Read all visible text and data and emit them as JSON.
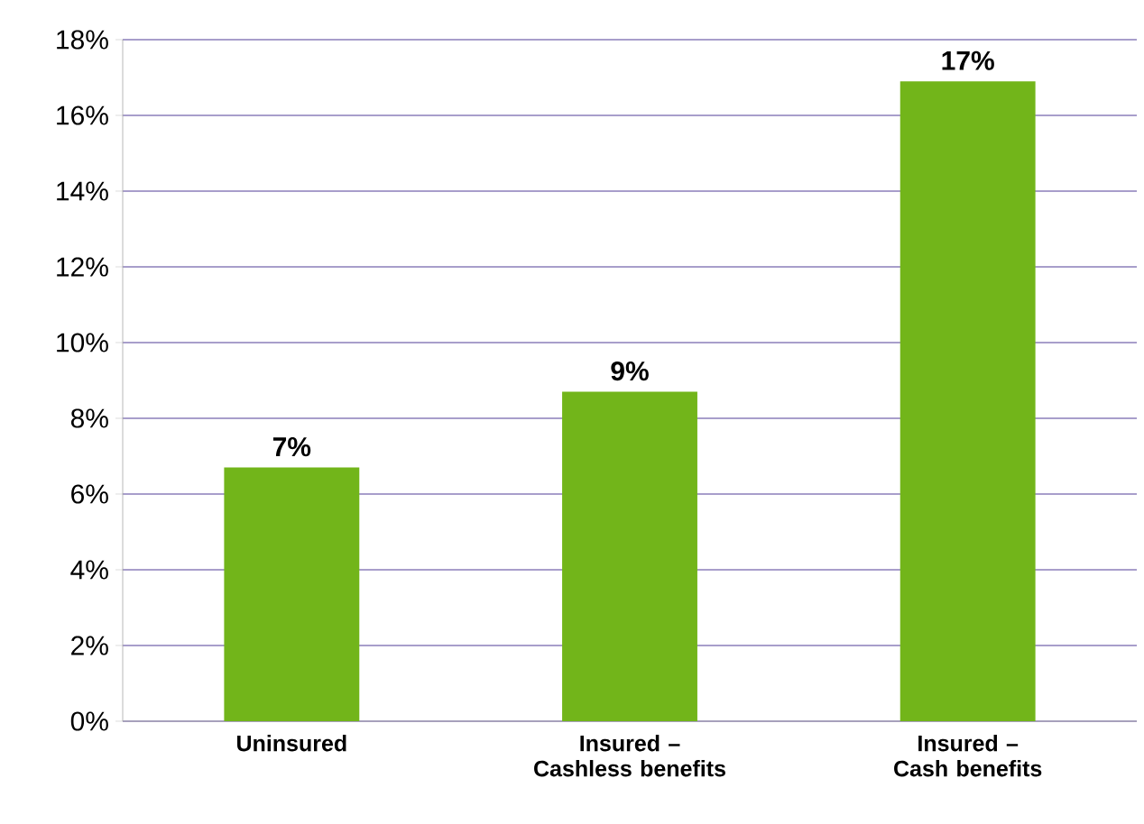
{
  "chart_data": {
    "type": "bar",
    "categories": [
      "Uninsured",
      "Insured – Cashless benefits",
      "Insured – Cash benefits"
    ],
    "values": [
      6.7,
      8.7,
      16.9
    ],
    "value_labels": [
      "7%",
      "9%",
      "17%"
    ],
    "color": "#72b51a",
    "ylim": [
      0,
      18
    ],
    "yticks": [
      {
        "value": 0,
        "label": "0%"
      },
      {
        "value": 2,
        "label": "2%"
      },
      {
        "value": 4,
        "label": "4%"
      },
      {
        "value": 6,
        "label": "6%"
      },
      {
        "value": 8,
        "label": "8%"
      },
      {
        "value": 10,
        "label": "10%"
      },
      {
        "value": 12,
        "label": "12%"
      },
      {
        "value": 14,
        "label": "14%"
      },
      {
        "value": 16,
        "label": "16%"
      },
      {
        "value": 18,
        "label": "18%"
      }
    ],
    "grid": "y"
  }
}
